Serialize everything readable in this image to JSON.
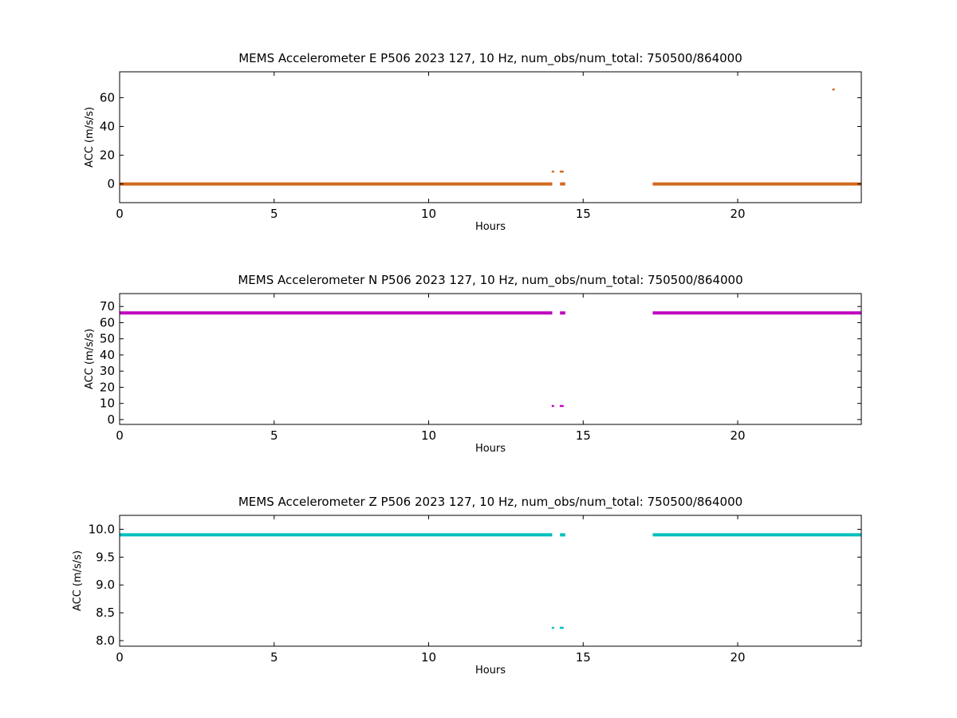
{
  "chart_data": [
    {
      "type": "scatter",
      "title": "MEMS Accelerometer E P506 2023 127, 10 Hz, num_obs/num_total: 750500/864000",
      "xlabel": "Hours",
      "ylabel": "ACC (m/s/s)",
      "xlim": [
        0,
        24
      ],
      "ylim": [
        -13,
        78
      ],
      "xticks": [
        0,
        5,
        10,
        15,
        20
      ],
      "yticks": [
        0,
        20,
        40,
        60
      ],
      "color": "#d2691e",
      "grid": false,
      "series": [
        {
          "segments": [
            {
              "x": [
                0,
                14.0
              ],
              "y": 0
            },
            {
              "x": [
                14.25,
                14.42
              ],
              "y": 0
            },
            {
              "x": [
                17.25,
                24.0
              ],
              "y": 0
            }
          ],
          "points": [
            {
              "x": 14.02,
              "y": 8.6
            },
            {
              "x": 14.28,
              "y": 8.6
            },
            {
              "x": 14.33,
              "y": 8.6
            },
            {
              "x": 23.1,
              "y": 65.7
            }
          ]
        }
      ]
    },
    {
      "type": "scatter",
      "title": "MEMS Accelerometer N P506 2023 127, 10 Hz, num_obs/num_total: 750500/864000",
      "xlabel": "Hours",
      "ylabel": "ACC (m/s/s)",
      "xlim": [
        0,
        24
      ],
      "ylim": [
        -3,
        78
      ],
      "xticks": [
        0,
        5,
        10,
        15,
        20
      ],
      "yticks": [
        0,
        10,
        20,
        30,
        40,
        50,
        60,
        70
      ],
      "color": "#bf00bf",
      "grid": false,
      "series": [
        {
          "segments": [
            {
              "x": [
                0,
                14.0
              ],
              "y": 66
            },
            {
              "x": [
                14.25,
                14.42
              ],
              "y": 66
            },
            {
              "x": [
                17.25,
                24.0
              ],
              "y": 66
            }
          ],
          "points": [
            {
              "x": 14.02,
              "y": 8.4
            },
            {
              "x": 14.28,
              "y": 8.4
            },
            {
              "x": 14.33,
              "y": 8.4
            }
          ]
        }
      ]
    },
    {
      "type": "scatter",
      "title": "MEMS Accelerometer Z P506 2023 127, 10 Hz, num_obs/num_total: 750500/864000",
      "xlabel": "Hours",
      "ylabel": "ACC (m/s/s)",
      "xlim": [
        0,
        24
      ],
      "ylim": [
        7.9,
        10.25
      ],
      "xticks": [
        0,
        5,
        10,
        15,
        20
      ],
      "yticks": [
        8.0,
        8.5,
        9.0,
        9.5,
        10.0
      ],
      "yticklabels": [
        "8.0",
        "8.5",
        "9.0",
        "9.5",
        "10.0"
      ],
      "color": "#00bfbf",
      "grid": false,
      "series": [
        {
          "segments": [
            {
              "x": [
                0,
                14.0
              ],
              "y": 9.9
            },
            {
              "x": [
                14.25,
                14.42
              ],
              "y": 9.9
            },
            {
              "x": [
                17.25,
                24.0
              ],
              "y": 9.9
            }
          ],
          "points": [
            {
              "x": 14.02,
              "y": 8.23
            },
            {
              "x": 14.28,
              "y": 8.23
            },
            {
              "x": 14.33,
              "y": 8.23
            }
          ]
        }
      ]
    }
  ]
}
